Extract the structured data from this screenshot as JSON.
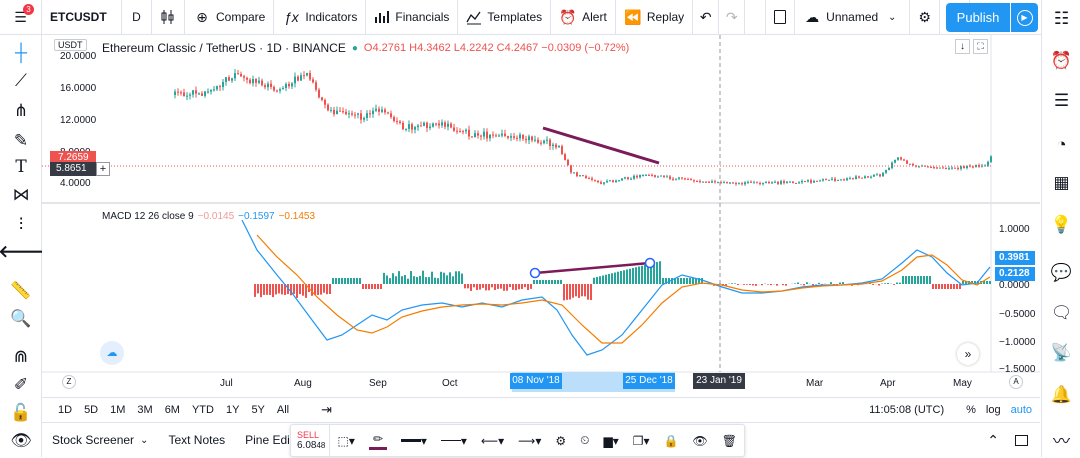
{
  "topbar": {
    "menu_badge": "3",
    "symbol": "ETCUSDT",
    "interval": "D",
    "compare_label": "Compare",
    "indicators_label": "Indicators",
    "financials_label": "Financials",
    "templates_label": "Templates",
    "alert_label": "Alert",
    "replay_label": "Replay",
    "layout_name": "Unnamed",
    "publish_label": "Publish"
  },
  "chart": {
    "currency": "USDT",
    "title": "Ethereum Classic / TetherUS · 1D · BINANCE",
    "ohlc": "O4.2761  H4.3462  L4.2242  C4.2467  −0.0309 (−0.72%)",
    "price_ticks": [
      "20.0000",
      "16.0000",
      "12.0000",
      "8.0000",
      "4.0000"
    ],
    "last_price": "7.2659",
    "cursor_price": "5.8651",
    "macd_label": "MACD 12 26 close 9",
    "macd_hist": "−0.0145",
    "macd_line": "−0.1597",
    "macd_signal": "−0.1453",
    "macd_ticks": [
      "1.0000",
      "0.5000",
      "0.0000",
      "−0.5000",
      "−1.0000",
      "−1.5000"
    ],
    "macd_badge_macd": "0.3981",
    "macd_badge_signal": "0.2128",
    "time_labels": [
      "Jul",
      "Aug",
      "Sep",
      "Oct",
      "Dec",
      "Mar",
      "Apr",
      "May"
    ],
    "time_marker_start": "08 Nov '18",
    "time_marker_end": "25 Dec '18",
    "time_marker_cursor": "23 Jan '19",
    "colors": {
      "up": "#26a69a",
      "down": "#ef5350",
      "macd": "#2196f3",
      "signal": "#f57c00",
      "trendline": "#7b1b5a"
    }
  },
  "timeranges": [
    "1D",
    "5D",
    "1M",
    "3M",
    "6M",
    "YTD",
    "1Y",
    "5Y",
    "All"
  ],
  "clock": "11:05:08 (UTC)",
  "scale_options": {
    "pct": "%",
    "log": "log",
    "auto": "auto"
  },
  "footer": {
    "stock_screener": "Stock Screener",
    "text_notes": "Text Notes",
    "pine_editor": "Pine Edi"
  },
  "drawbar": {
    "sell_label": "SELL",
    "sell_value": "6.08",
    "sell_value_small": "48"
  }
}
